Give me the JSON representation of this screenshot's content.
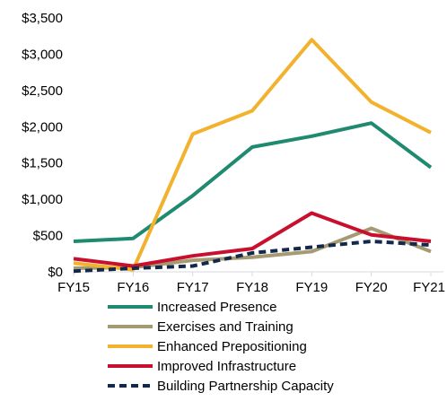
{
  "chart_data": {
    "type": "line",
    "title": "",
    "xlabel": "",
    "ylabel": "",
    "categories": [
      "FY15",
      "FY16",
      "FY17",
      "FY18",
      "FY19",
      "FY20",
      "FY21"
    ],
    "ylim": [
      0,
      3500
    ],
    "yticks": [
      0,
      500,
      1000,
      1500,
      2000,
      2500,
      3000,
      3500
    ],
    "ytick_labels": [
      "$0",
      "$500",
      "$1,000",
      "$1,500",
      "$2,000",
      "$2,500",
      "$3,000",
      "$3,500"
    ],
    "grid": false,
    "legend_position": "bottom",
    "series": [
      {
        "name": "Increased Presence",
        "color": "#1f8a70",
        "dash": "solid",
        "values": [
          420,
          460,
          1050,
          1720,
          1870,
          2050,
          1440
        ]
      },
      {
        "name": "Exercises and Training",
        "color": "#a59a72",
        "dash": "solid",
        "values": [
          50,
          60,
          160,
          200,
          280,
          600,
          280
        ]
      },
      {
        "name": "Enhanced Prepositioning",
        "color": "#f2b22e",
        "dash": "solid",
        "values": [
          120,
          30,
          1900,
          2220,
          3200,
          2340,
          1920
        ]
      },
      {
        "name": "Improved Infrastructure",
        "color": "#c8102e",
        "dash": "solid",
        "values": [
          180,
          80,
          220,
          320,
          810,
          510,
          420
        ]
      },
      {
        "name": "Building Partnership Capacity",
        "color": "#13294b",
        "dash": "dashed",
        "values": [
          10,
          50,
          80,
          260,
          340,
          420,
          370
        ]
      }
    ]
  }
}
